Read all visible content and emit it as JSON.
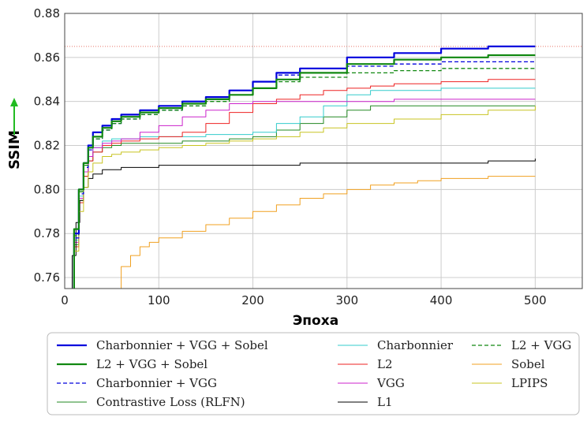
{
  "chart_data": {
    "type": "line",
    "xlabel": "Эпоха",
    "ylabel": "SSIM",
    "xlim": [
      0,
      550
    ],
    "ylim": [
      0.755,
      0.88
    ],
    "xticks": [
      0,
      100,
      200,
      300,
      400,
      500
    ],
    "yticks": [
      0.76,
      0.78,
      0.8,
      0.82,
      0.84,
      0.86,
      0.88
    ],
    "xtick_labels": [
      "0",
      "100",
      "200",
      "300",
      "400",
      "500"
    ],
    "ytick_labels": [
      "0.76",
      "0.78",
      "0.80",
      "0.82",
      "0.84",
      "0.86",
      "0.88"
    ],
    "grid": true,
    "legend_position": "bottom",
    "reference_line": {
      "y": 0.865,
      "color": "#e8766a",
      "style": "dotted"
    },
    "series": [
      {
        "name": "Charbonnier + VGG + Sobel",
        "color": "#0000dd",
        "width": 2.2,
        "dash": "solid",
        "x": [
          5,
          10,
          15,
          20,
          25,
          30,
          40,
          50,
          60,
          80,
          100,
          125,
          150,
          175,
          200,
          225,
          250,
          300,
          350,
          400,
          450,
          500
        ],
        "y": [
          0.752,
          0.78,
          0.8,
          0.812,
          0.82,
          0.826,
          0.829,
          0.832,
          0.834,
          0.836,
          0.838,
          0.84,
          0.842,
          0.845,
          0.849,
          0.853,
          0.855,
          0.86,
          0.862,
          0.864,
          0.865,
          0.865
        ]
      },
      {
        "name": "L2 + VGG + Sobel",
        "color": "#118811",
        "width": 2.2,
        "dash": "solid",
        "x": [
          5,
          10,
          15,
          20,
          25,
          30,
          40,
          50,
          60,
          80,
          100,
          125,
          150,
          175,
          200,
          225,
          250,
          300,
          350,
          400,
          450,
          500
        ],
        "y": [
          0.753,
          0.782,
          0.8,
          0.812,
          0.819,
          0.824,
          0.828,
          0.831,
          0.833,
          0.835,
          0.837,
          0.839,
          0.841,
          0.843,
          0.846,
          0.85,
          0.853,
          0.857,
          0.859,
          0.86,
          0.861,
          0.861
        ]
      },
      {
        "name": "Charbonnier + VGG",
        "color": "#0000dd",
        "width": 1.3,
        "dash": "5,3",
        "x": [
          5,
          10,
          15,
          20,
          25,
          30,
          40,
          50,
          60,
          80,
          100,
          125,
          150,
          175,
          200,
          225,
          250,
          300,
          350,
          400,
          450,
          500
        ],
        "y": [
          0.752,
          0.778,
          0.798,
          0.81,
          0.818,
          0.823,
          0.827,
          0.83,
          0.832,
          0.834,
          0.836,
          0.839,
          0.841,
          0.845,
          0.849,
          0.852,
          0.853,
          0.856,
          0.857,
          0.858,
          0.858,
          0.858
        ]
      },
      {
        "name": "Contrastive Loss (RLFN)",
        "color": "#228822",
        "width": 1.0,
        "dash": "solid",
        "x": [
          5,
          10,
          15,
          20,
          25,
          30,
          40,
          50,
          60,
          80,
          100,
          125,
          150,
          175,
          200,
          225,
          250,
          275,
          300,
          325,
          350,
          400,
          450,
          500
        ],
        "y": [
          0.752,
          0.775,
          0.795,
          0.806,
          0.813,
          0.817,
          0.819,
          0.82,
          0.821,
          0.821,
          0.821,
          0.822,
          0.822,
          0.823,
          0.824,
          0.827,
          0.83,
          0.833,
          0.836,
          0.838,
          0.838,
          0.838,
          0.838,
          0.838
        ]
      },
      {
        "name": "Charbonnier",
        "color": "#33cccc",
        "width": 1.0,
        "dash": "solid",
        "x": [
          5,
          10,
          15,
          20,
          25,
          30,
          40,
          50,
          60,
          80,
          100,
          125,
          150,
          175,
          200,
          225,
          250,
          275,
          300,
          325,
          350,
          400,
          450,
          500
        ],
        "y": [
          0.752,
          0.777,
          0.797,
          0.808,
          0.815,
          0.819,
          0.822,
          0.823,
          0.823,
          0.824,
          0.824,
          0.824,
          0.825,
          0.825,
          0.826,
          0.83,
          0.833,
          0.838,
          0.843,
          0.845,
          0.845,
          0.846,
          0.846,
          0.846
        ]
      },
      {
        "name": "L2",
        "color": "#ee2222",
        "width": 1.0,
        "dash": "solid",
        "x": [
          5,
          10,
          15,
          20,
          25,
          30,
          40,
          50,
          60,
          80,
          100,
          125,
          150,
          175,
          200,
          225,
          250,
          275,
          300,
          325,
          350,
          400,
          450,
          500
        ],
        "y": [
          0.752,
          0.774,
          0.794,
          0.806,
          0.813,
          0.817,
          0.82,
          0.821,
          0.822,
          0.823,
          0.824,
          0.826,
          0.83,
          0.835,
          0.839,
          0.841,
          0.843,
          0.845,
          0.846,
          0.847,
          0.848,
          0.849,
          0.85,
          0.85
        ]
      },
      {
        "name": "VGG",
        "color": "#cc22cc",
        "width": 1.0,
        "dash": "solid",
        "x": [
          5,
          10,
          15,
          20,
          25,
          30,
          40,
          50,
          60,
          80,
          100,
          125,
          150,
          175,
          200,
          225,
          250,
          300,
          350,
          400,
          450,
          500
        ],
        "y": [
          0.752,
          0.776,
          0.796,
          0.808,
          0.815,
          0.819,
          0.821,
          0.822,
          0.823,
          0.826,
          0.829,
          0.833,
          0.836,
          0.839,
          0.84,
          0.84,
          0.84,
          0.84,
          0.841,
          0.841,
          0.841,
          0.841
        ]
      },
      {
        "name": "L1",
        "color": "#000000",
        "width": 1.0,
        "dash": "solid",
        "x": [
          5,
          8,
          12,
          16,
          20,
          25,
          30,
          40,
          50,
          60,
          80,
          100,
          150,
          200,
          250,
          300,
          350,
          400,
          450,
          500
        ],
        "y": [
          0.752,
          0.77,
          0.785,
          0.795,
          0.801,
          0.805,
          0.807,
          0.809,
          0.809,
          0.81,
          0.81,
          0.811,
          0.811,
          0.811,
          0.812,
          0.812,
          0.812,
          0.812,
          0.813,
          0.814
        ]
      },
      {
        "name": "L2 + VGG",
        "color": "#118811",
        "width": 1.3,
        "dash": "5,3",
        "x": [
          5,
          10,
          15,
          20,
          25,
          30,
          40,
          50,
          60,
          80,
          100,
          125,
          150,
          175,
          200,
          225,
          250,
          300,
          350,
          400,
          450,
          500
        ],
        "y": [
          0.752,
          0.779,
          0.799,
          0.811,
          0.819,
          0.823,
          0.827,
          0.83,
          0.832,
          0.834,
          0.836,
          0.838,
          0.84,
          0.843,
          0.846,
          0.849,
          0.851,
          0.853,
          0.854,
          0.855,
          0.855,
          0.855
        ]
      },
      {
        "name": "Sobel",
        "color": "#f0a020",
        "width": 1.0,
        "dash": "solid",
        "x": [
          55,
          60,
          70,
          80,
          90,
          100,
          125,
          150,
          175,
          200,
          225,
          250,
          275,
          300,
          325,
          350,
          375,
          400,
          450,
          500
        ],
        "y": [
          0.755,
          0.765,
          0.77,
          0.774,
          0.776,
          0.778,
          0.781,
          0.784,
          0.787,
          0.79,
          0.793,
          0.796,
          0.798,
          0.8,
          0.802,
          0.803,
          0.804,
          0.805,
          0.806,
          0.806
        ]
      },
      {
        "name": "LPIPS",
        "color": "#c8c422",
        "width": 1.0,
        "dash": "solid",
        "x": [
          5,
          10,
          15,
          20,
          25,
          30,
          40,
          50,
          60,
          80,
          100,
          125,
          150,
          175,
          200,
          225,
          250,
          275,
          300,
          350,
          400,
          450,
          500
        ],
        "y": [
          0.752,
          0.772,
          0.79,
          0.801,
          0.808,
          0.812,
          0.815,
          0.816,
          0.817,
          0.818,
          0.819,
          0.82,
          0.821,
          0.822,
          0.823,
          0.824,
          0.826,
          0.828,
          0.83,
          0.832,
          0.834,
          0.836,
          0.838
        ]
      }
    ],
    "legend_columns": [
      [
        "Charbonnier + VGG + Sobel",
        "L2 + VGG + Sobel",
        "Charbonnier + VGG",
        "Contrastive Loss (RLFN)"
      ],
      [
        "Charbonnier",
        "L2",
        "VGG",
        "L1"
      ],
      [
        "L2 + VGG",
        "Sobel",
        "LPIPS"
      ]
    ]
  }
}
